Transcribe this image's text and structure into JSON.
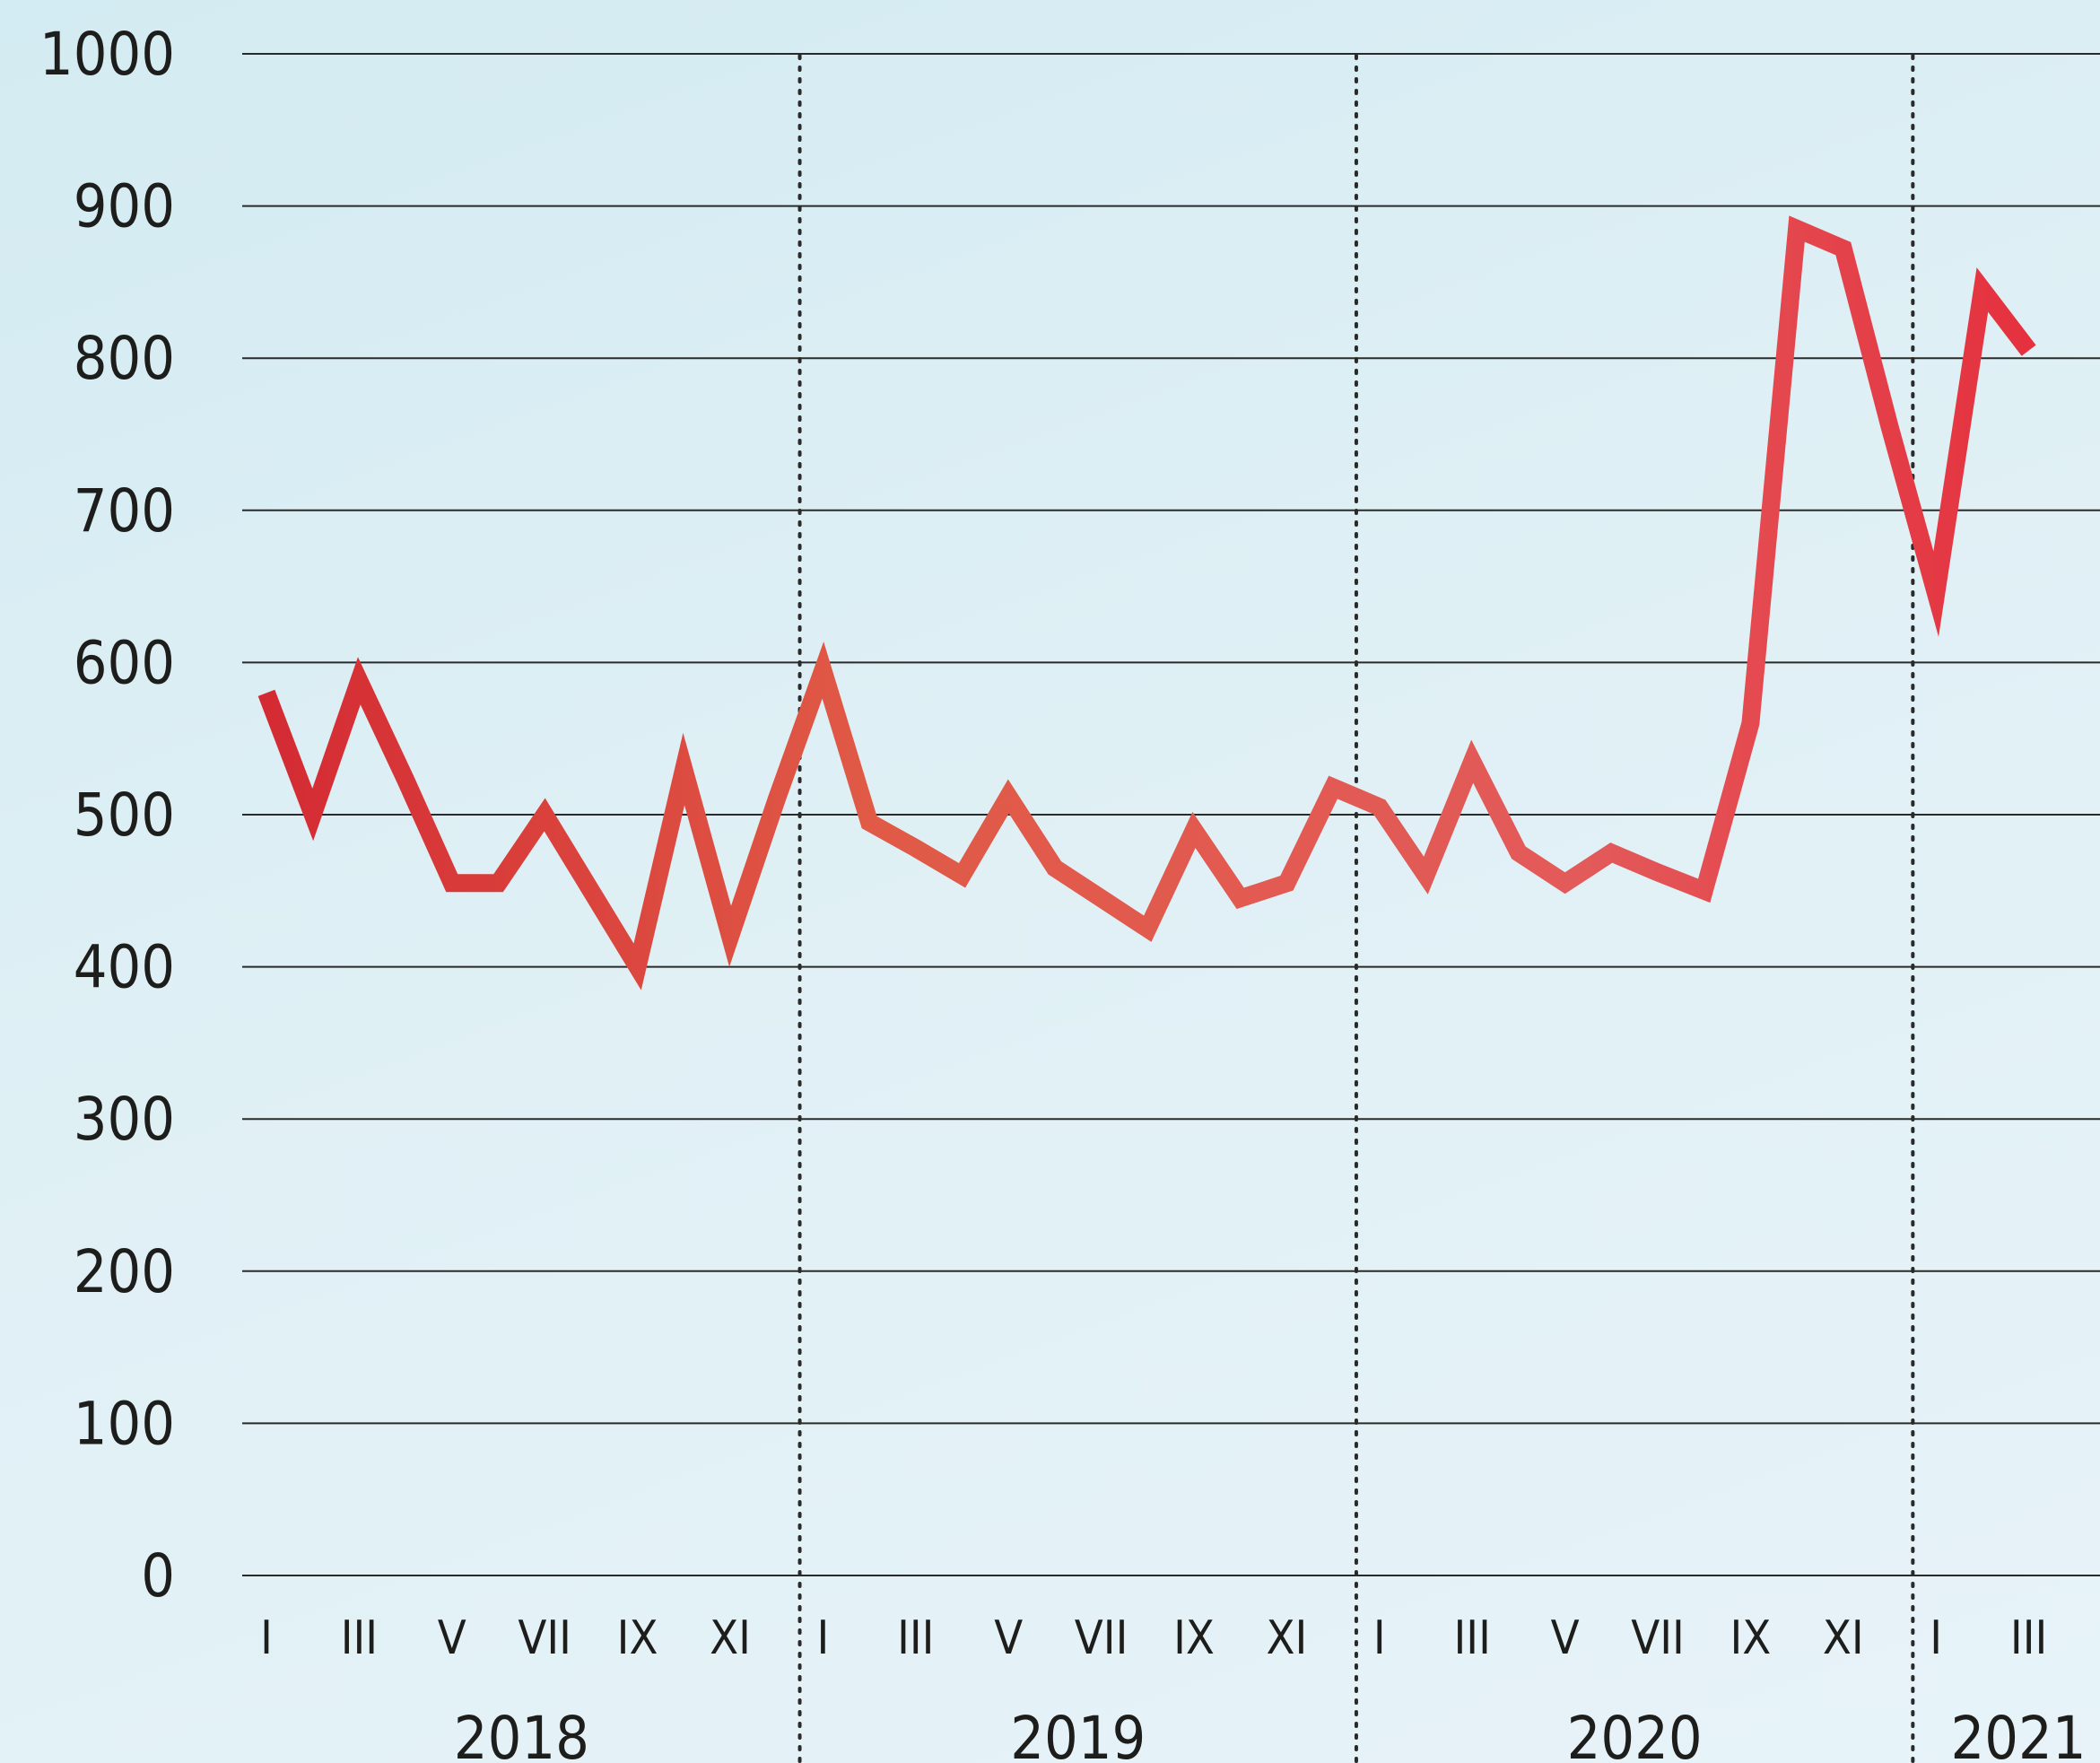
{
  "chart_data": {
    "type": "line",
    "title": "",
    "xlabel": "",
    "ylabel": "",
    "ylim": [
      0,
      1000
    ],
    "yticks": [
      0,
      100,
      200,
      300,
      400,
      500,
      600,
      700,
      800,
      900,
      1000
    ],
    "grid": "horizontal",
    "legend": "none",
    "years": [
      "2018",
      "2019",
      "2020",
      "2021"
    ],
    "month_tick_labels": [
      "I",
      "III",
      "V",
      "VII",
      "IX",
      "XI"
    ],
    "x": [
      "2018-I",
      "2018-II",
      "2018-III",
      "2018-IV",
      "2018-V",
      "2018-VI",
      "2018-VII",
      "2018-VIII",
      "2018-IX",
      "2018-X",
      "2018-XI",
      "2018-XII",
      "2019-I",
      "2019-II",
      "2019-III",
      "2019-IV",
      "2019-V",
      "2019-VI",
      "2019-VII",
      "2019-VIII",
      "2019-IX",
      "2019-X",
      "2019-XI",
      "2019-XII",
      "2020-I",
      "2020-II",
      "2020-III",
      "2020-IV",
      "2020-V",
      "2020-VI",
      "2020-VII",
      "2020-VIII",
      "2020-IX",
      "2020-X",
      "2020-XI",
      "2020-XII",
      "2021-I",
      "2021-II",
      "2021-III"
    ],
    "series": [
      {
        "values": [
          580,
          500,
          588,
          523,
          455,
          455,
          500,
          450,
          400,
          530,
          420,
          510,
          595,
          495,
          478,
          460,
          512,
          465,
          445,
          425,
          490,
          445,
          455,
          518,
          505,
          460,
          535,
          475,
          455,
          475,
          462,
          450,
          560,
          885,
          872,
          755,
          645,
          845,
          805
        ]
      }
    ],
    "line_colors": [
      "#d42a33",
      "#e05a46",
      "#e35a5a",
      "#e52a3a"
    ]
  }
}
